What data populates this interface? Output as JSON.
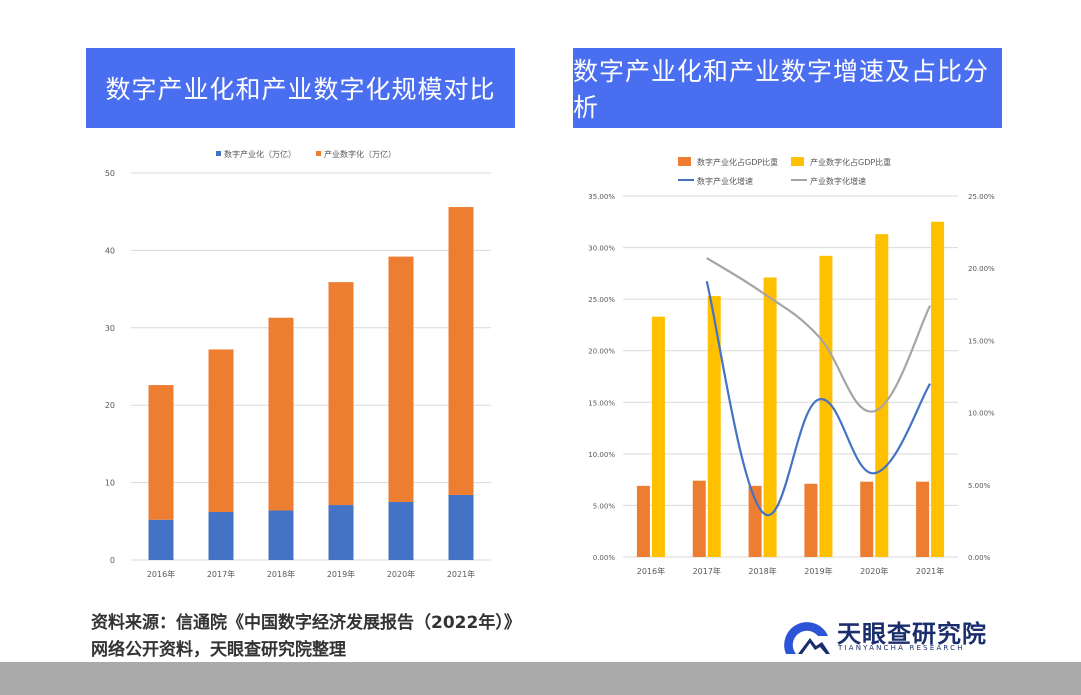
{
  "banners": {
    "left": "数字产业化和产业数字化规模对比",
    "right": "数字产业化和产业数字增速及占比分析"
  },
  "source": {
    "line1": "资料来源：信通院《中国数字经济发展报告（2022年）》",
    "line2": "网络公开资料，天眼查研究院整理"
  },
  "logo": {
    "name": "天眼查研究院",
    "sub": "TIANYANCHA RESEARCH"
  },
  "chart_data": [
    {
      "type": "bar",
      "stacked": true,
      "categories": [
        "2016年",
        "2017年",
        "2018年",
        "2019年",
        "2020年",
        "2021年"
      ],
      "series": [
        {
          "name": "数字产业化（万亿）",
          "color": "#4472c4",
          "values": [
            5.2,
            6.2,
            6.4,
            7.1,
            7.5,
            8.4
          ]
        },
        {
          "name": "产业数字化（万亿）",
          "color": "#ed7d31",
          "values": [
            17.4,
            21.0,
            24.9,
            28.8,
            31.7,
            37.2
          ]
        }
      ],
      "ylim": [
        0,
        50
      ],
      "yticks": [
        "0",
        "10",
        "20",
        "30",
        "40",
        "50"
      ],
      "grid": true,
      "legend": "top"
    },
    {
      "type": "bar+line",
      "categories": [
        "2016年",
        "2017年",
        "2018年",
        "2019年",
        "2020年",
        "2021年"
      ],
      "bar_series": [
        {
          "name": "数字产业化占GDP比重",
          "color": "#ed7d31",
          "axis": "left",
          "values": [
            6.9,
            7.4,
            6.9,
            7.1,
            7.3,
            7.3
          ]
        },
        {
          "name": "产业数字化占GDP比重",
          "color": "#ffc000",
          "axis": "left",
          "values": [
            23.3,
            25.3,
            27.1,
            29.2,
            31.3,
            32.5
          ]
        }
      ],
      "line_series": [
        {
          "name": "数字产业化增速",
          "color": "#4472c4",
          "axis": "right",
          "values": [
            null,
            19.1,
            3.1,
            10.9,
            5.8,
            12.0
          ]
        },
        {
          "name": "产业数字化增速",
          "color": "#a5a5a5",
          "axis": "right",
          "values": [
            null,
            20.7,
            18.3,
            15.3,
            10.1,
            17.4
          ]
        }
      ],
      "ylim_left": [
        0,
        35
      ],
      "yticks_left": [
        "0.00%",
        "5.00%",
        "10.00%",
        "15.00%",
        "20.00%",
        "25.00%",
        "30.00%",
        "35.00%"
      ],
      "ylim_right": [
        0,
        25
      ],
      "yticks_right": [
        "0.00%",
        "5.00%",
        "10.00%",
        "15.00%",
        "20.00%",
        "25.00%"
      ],
      "grid": true,
      "legend": "top"
    }
  ]
}
